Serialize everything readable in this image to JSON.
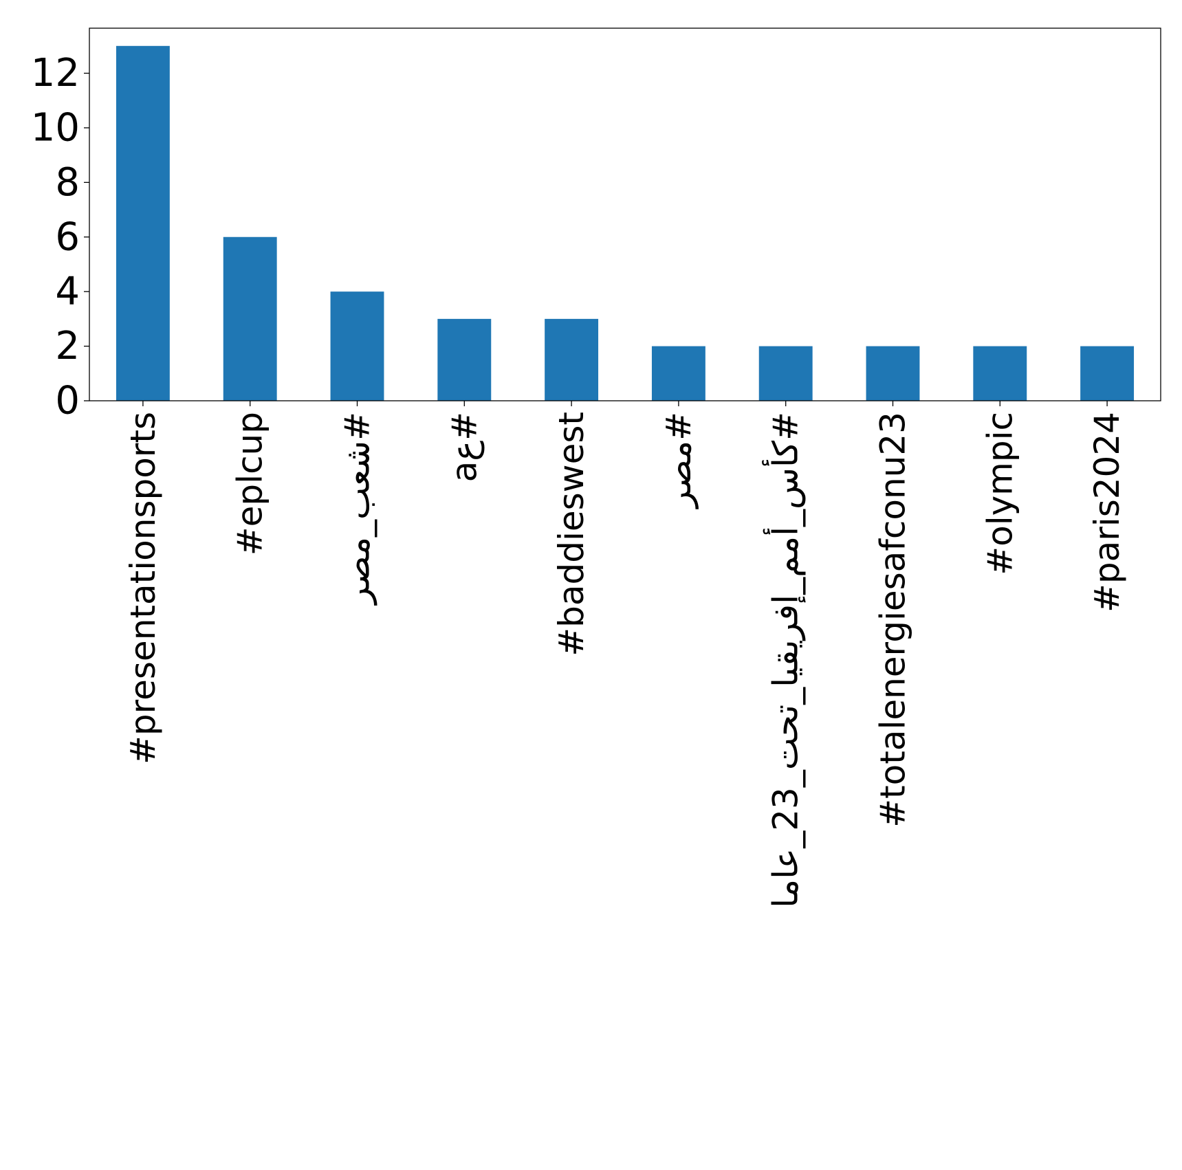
{
  "chart_data": {
    "type": "bar",
    "title": "",
    "xlabel": "",
    "ylabel": "",
    "categories": [
      "#presentationsports",
      "#eplcup",
      "#شعب_مصر",
      "#عa",
      "#baddieswest",
      "#مصر",
      "#كأس_أمم_إفريقيا_تحت_23_عاما",
      "#totalenergiesafconu23",
      "#olympic",
      "#paris2024"
    ],
    "values": [
      13,
      6,
      4,
      3,
      3,
      2,
      2,
      2,
      2,
      2
    ],
    "ylim": [
      0,
      13.65
    ],
    "yticks": [
      0,
      2,
      4,
      6,
      8,
      10,
      12
    ],
    "grid": false,
    "legend": false,
    "bar_color": "#1f77b4",
    "axis_color": "#000000"
  }
}
